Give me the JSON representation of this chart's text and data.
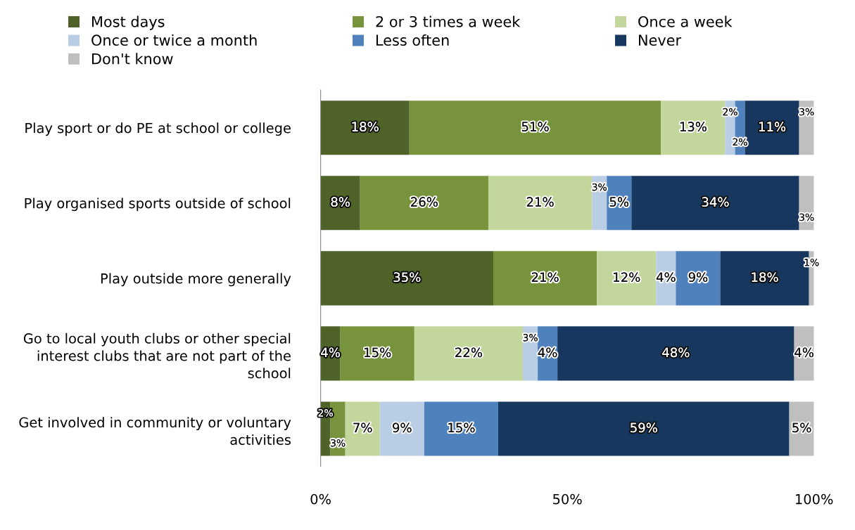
{
  "chart_data": {
    "type": "bar",
    "orientation": "horizontal",
    "stacked": true,
    "data_labels": true,
    "categories": [
      "Play sport or do PE at school or college",
      "Play organised sports outside of school",
      "Play outside more generally",
      "Go to local youth clubs or other special interest clubs that are not part of the school",
      "Get involved in community or voluntary activities"
    ],
    "series": [
      {
        "name": "Most days",
        "color": "#4f6228",
        "values": [
          18,
          8,
          35,
          4,
          2
        ],
        "value_labels": [
          "18%",
          "8%",
          "35%",
          "4%",
          "2%"
        ]
      },
      {
        "name": "2 or 3 times a week",
        "color": "#77933c",
        "values": [
          51,
          26,
          21,
          15,
          3
        ],
        "value_labels": [
          "51%",
          "26%",
          "21%",
          "15%",
          "3%"
        ]
      },
      {
        "name": "Once a week",
        "color": "#c3d69b",
        "values": [
          13,
          21,
          12,
          22,
          7
        ],
        "value_labels": [
          "13%",
          "21%",
          "12%",
          "22%",
          "7%"
        ]
      },
      {
        "name": "Once or twice a month",
        "color": "#b9cde5",
        "values": [
          2,
          3,
          4,
          3,
          9
        ],
        "value_labels": [
          "2%",
          "3%",
          "4%",
          "3%",
          "9%"
        ]
      },
      {
        "name": "Less often",
        "color": "#4f81bd",
        "values": [
          2,
          5,
          9,
          4,
          15
        ],
        "value_labels": [
          "2%",
          "5%",
          "9%",
          "4%",
          "15%"
        ]
      },
      {
        "name": "Never",
        "color": "#17375e",
        "values": [
          11,
          34,
          18,
          48,
          59
        ],
        "value_labels": [
          "11%",
          "34%",
          "18%",
          "48%",
          "59%"
        ]
      },
      {
        "name": "Don't know",
        "color": "#bfbfbf",
        "values": [
          3,
          3,
          1,
          4,
          5
        ],
        "value_labels": [
          "3%",
          "3%",
          "1%",
          "4%",
          "5%"
        ]
      }
    ],
    "xlim": [
      0,
      100
    ],
    "xticks": [
      {
        "value": 0,
        "label": "0%"
      },
      {
        "value": 50,
        "label": "50%"
      },
      {
        "value": 100,
        "label": "100%"
      }
    ],
    "grid": false,
    "legend": "top"
  }
}
